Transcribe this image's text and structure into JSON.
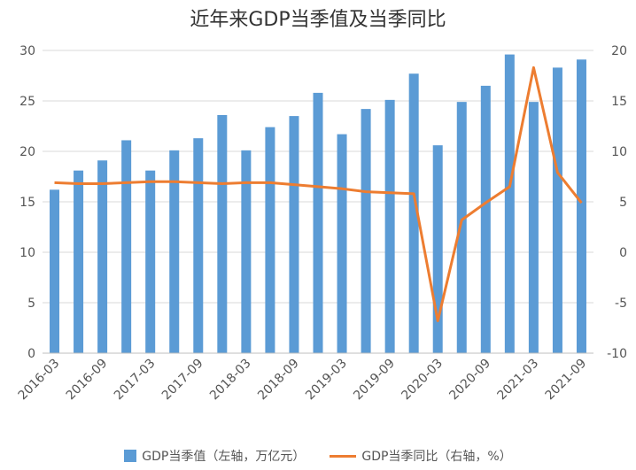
{
  "chart_data": {
    "type": "bar",
    "title": "近年来GDP当季值及当季同比",
    "categories": [
      "2016-03",
      "2016-06",
      "2016-09",
      "2016-12",
      "2017-03",
      "2017-06",
      "2017-09",
      "2017-12",
      "2018-03",
      "2018-06",
      "2018-09",
      "2018-12",
      "2019-03",
      "2019-06",
      "2019-09",
      "2019-12",
      "2020-03",
      "2020-06",
      "2020-09",
      "2020-12",
      "2021-03",
      "2021-06",
      "2021-09"
    ],
    "x_tick_labels": [
      "2016-03",
      "",
      "2016-09",
      "",
      "2017-03",
      "",
      "2017-09",
      "",
      "2018-03",
      "",
      "2018-09",
      "",
      "2019-03",
      "",
      "2019-09",
      "",
      "2020-03",
      "",
      "2020-09",
      "",
      "2021-03",
      "",
      "2021-09"
    ],
    "series": [
      {
        "name": "GDP当季值（左轴，万亿元）",
        "type": "bar",
        "axis": "left",
        "color": "#5B9BD5",
        "values": [
          16.2,
          18.1,
          19.1,
          21.1,
          18.1,
          20.1,
          21.3,
          23.6,
          20.1,
          22.4,
          23.5,
          25.8,
          21.7,
          24.2,
          25.1,
          27.7,
          20.6,
          24.9,
          26.5,
          29.6,
          24.9,
          28.3,
          29.1
        ]
      },
      {
        "name": "GDP当季同比（右轴，%）",
        "type": "line",
        "axis": "right",
        "color": "#ED7D31",
        "values": [
          6.9,
          6.8,
          6.8,
          6.9,
          7.0,
          7.0,
          6.9,
          6.8,
          6.9,
          6.9,
          6.7,
          6.5,
          6.3,
          6.0,
          5.9,
          5.8,
          -6.8,
          3.2,
          4.9,
          6.5,
          18.3,
          7.9,
          4.9
        ]
      }
    ],
    "left_axis": {
      "min": 0,
      "max": 30,
      "ticks": [
        "0",
        "5",
        "10",
        "15",
        "20",
        "25",
        "30"
      ]
    },
    "right_axis": {
      "min": -10,
      "max": 20,
      "ticks": [
        "-10",
        "-5",
        "0",
        "5",
        "10",
        "15",
        "20"
      ]
    },
    "grid": true,
    "legend_position": "bottom"
  }
}
